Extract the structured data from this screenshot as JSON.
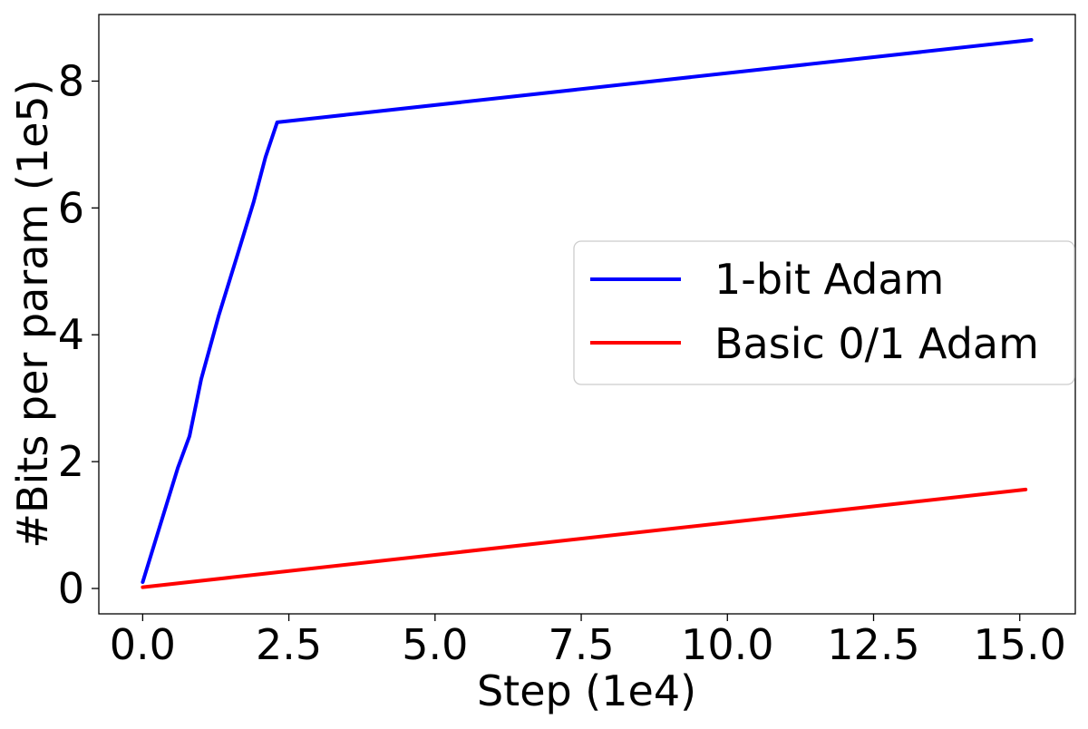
{
  "chart_data": {
    "type": "line",
    "title": "",
    "xlabel": "Step (1e4)",
    "ylabel": "#Bits per param (1e5)",
    "xlim": [
      -0.75,
      15.95
    ],
    "ylim": [
      -0.4,
      9.05
    ],
    "xticks": [
      0.0,
      2.5,
      5.0,
      7.5,
      10.0,
      12.5,
      15.0
    ],
    "xtick_labels": [
      "0.0",
      "2.5",
      "5.0",
      "7.5",
      "10.0",
      "12.5",
      "15.0"
    ],
    "yticks": [
      0,
      2,
      4,
      6,
      8
    ],
    "ytick_labels": [
      "0",
      "2",
      "4",
      "6",
      "8"
    ],
    "grid": false,
    "legend_position": "center-right",
    "series": [
      {
        "name": "1-bit Adam",
        "color": "#0000ff",
        "x": [
          0.0,
          0.3,
          0.6,
          0.8,
          1.0,
          1.3,
          1.6,
          1.9,
          2.1,
          2.3,
          15.2
        ],
        "y": [
          0.1,
          1.0,
          1.9,
          2.4,
          3.3,
          4.3,
          5.2,
          6.1,
          6.8,
          7.35,
          8.65
        ]
      },
      {
        "name": "Basic 0/1 Adam",
        "color": "#ff0000",
        "x": [
          0.0,
          15.1
        ],
        "y": [
          0.02,
          1.56
        ]
      }
    ]
  }
}
